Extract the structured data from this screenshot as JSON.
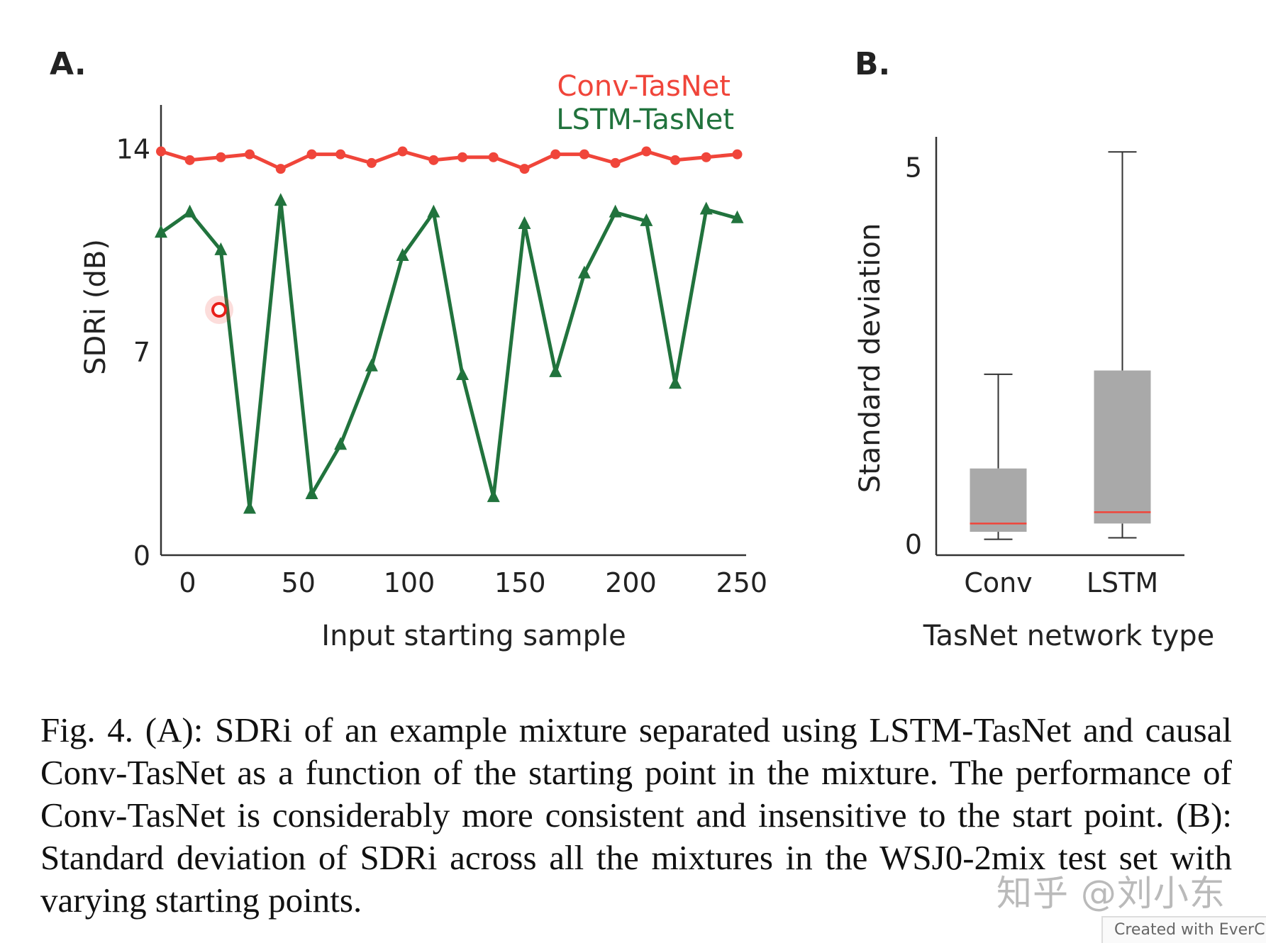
{
  "chart_data": [
    {
      "panel_label": "A.",
      "type": "line",
      "xlabel": "Input starting sample",
      "ylabel": "SDRi (dB)",
      "xticks": [
        0,
        50,
        100,
        150,
        200,
        250
      ],
      "yticks": [
        0,
        7,
        14
      ],
      "xlim": [
        -12,
        252
      ],
      "ylim": [
        0,
        15.5
      ],
      "legend_position": "top-right",
      "x": [
        -12,
        1,
        15,
        28,
        42,
        56,
        69,
        83,
        97,
        111,
        124,
        138,
        152,
        166,
        179,
        193,
        207,
        220,
        234,
        248
      ],
      "series": [
        {
          "name": "Conv-TasNet",
          "color": "#f0453a",
          "marker": "circle",
          "values": [
            13.9,
            13.6,
            13.7,
            13.8,
            13.3,
            13.8,
            13.8,
            13.5,
            13.9,
            13.6,
            13.7,
            13.7,
            13.3,
            13.8,
            13.8,
            13.5,
            13.9,
            13.6,
            13.7,
            13.8
          ]
        },
        {
          "name": "LSTM-TasNet",
          "color": "#21733d",
          "marker": "triangle",
          "values": [
            11.1,
            11.8,
            10.5,
            1.6,
            12.2,
            2.1,
            3.8,
            6.5,
            10.3,
            11.8,
            6.2,
            2.0,
            11.4,
            6.3,
            9.7,
            11.8,
            11.5,
            5.9,
            11.9,
            11.6
          ]
        }
      ]
    },
    {
      "panel_label": "B.",
      "type": "box",
      "xlabel": "TasNet network type",
      "ylabel": "Standard deviation",
      "categories": [
        "Conv",
        "LSTM"
      ],
      "yticks": [
        0,
        5
      ],
      "ylim": [
        -0.15,
        5.4
      ],
      "boxes": [
        {
          "category": "Conv",
          "whisker_low": 0.06,
          "q1": 0.16,
          "median": 0.27,
          "q3": 1.0,
          "whisker_high": 2.25,
          "box_color": "#a9a9a9",
          "median_color": "#f0453a"
        },
        {
          "category": "LSTM",
          "whisker_low": 0.08,
          "q1": 0.27,
          "median": 0.42,
          "q3": 2.3,
          "whisker_high": 5.2,
          "box_color": "#a9a9a9",
          "median_color": "#f0453a"
        }
      ]
    }
  ],
  "caption": "Fig. 4.  (A): SDRi of an example mixture separated using LSTM-TasNet and causal Conv-TasNet as a function of the starting point in the mixture. The performance of Conv-TasNet is considerably more consistent and insensitive to the start point. (B): Standard deviation of SDRi across all the mixtures in the WSJ0-2mix test set with varying starting points.",
  "watermark": "知乎 @刘小东",
  "footer_badge": "Created with EverCam"
}
